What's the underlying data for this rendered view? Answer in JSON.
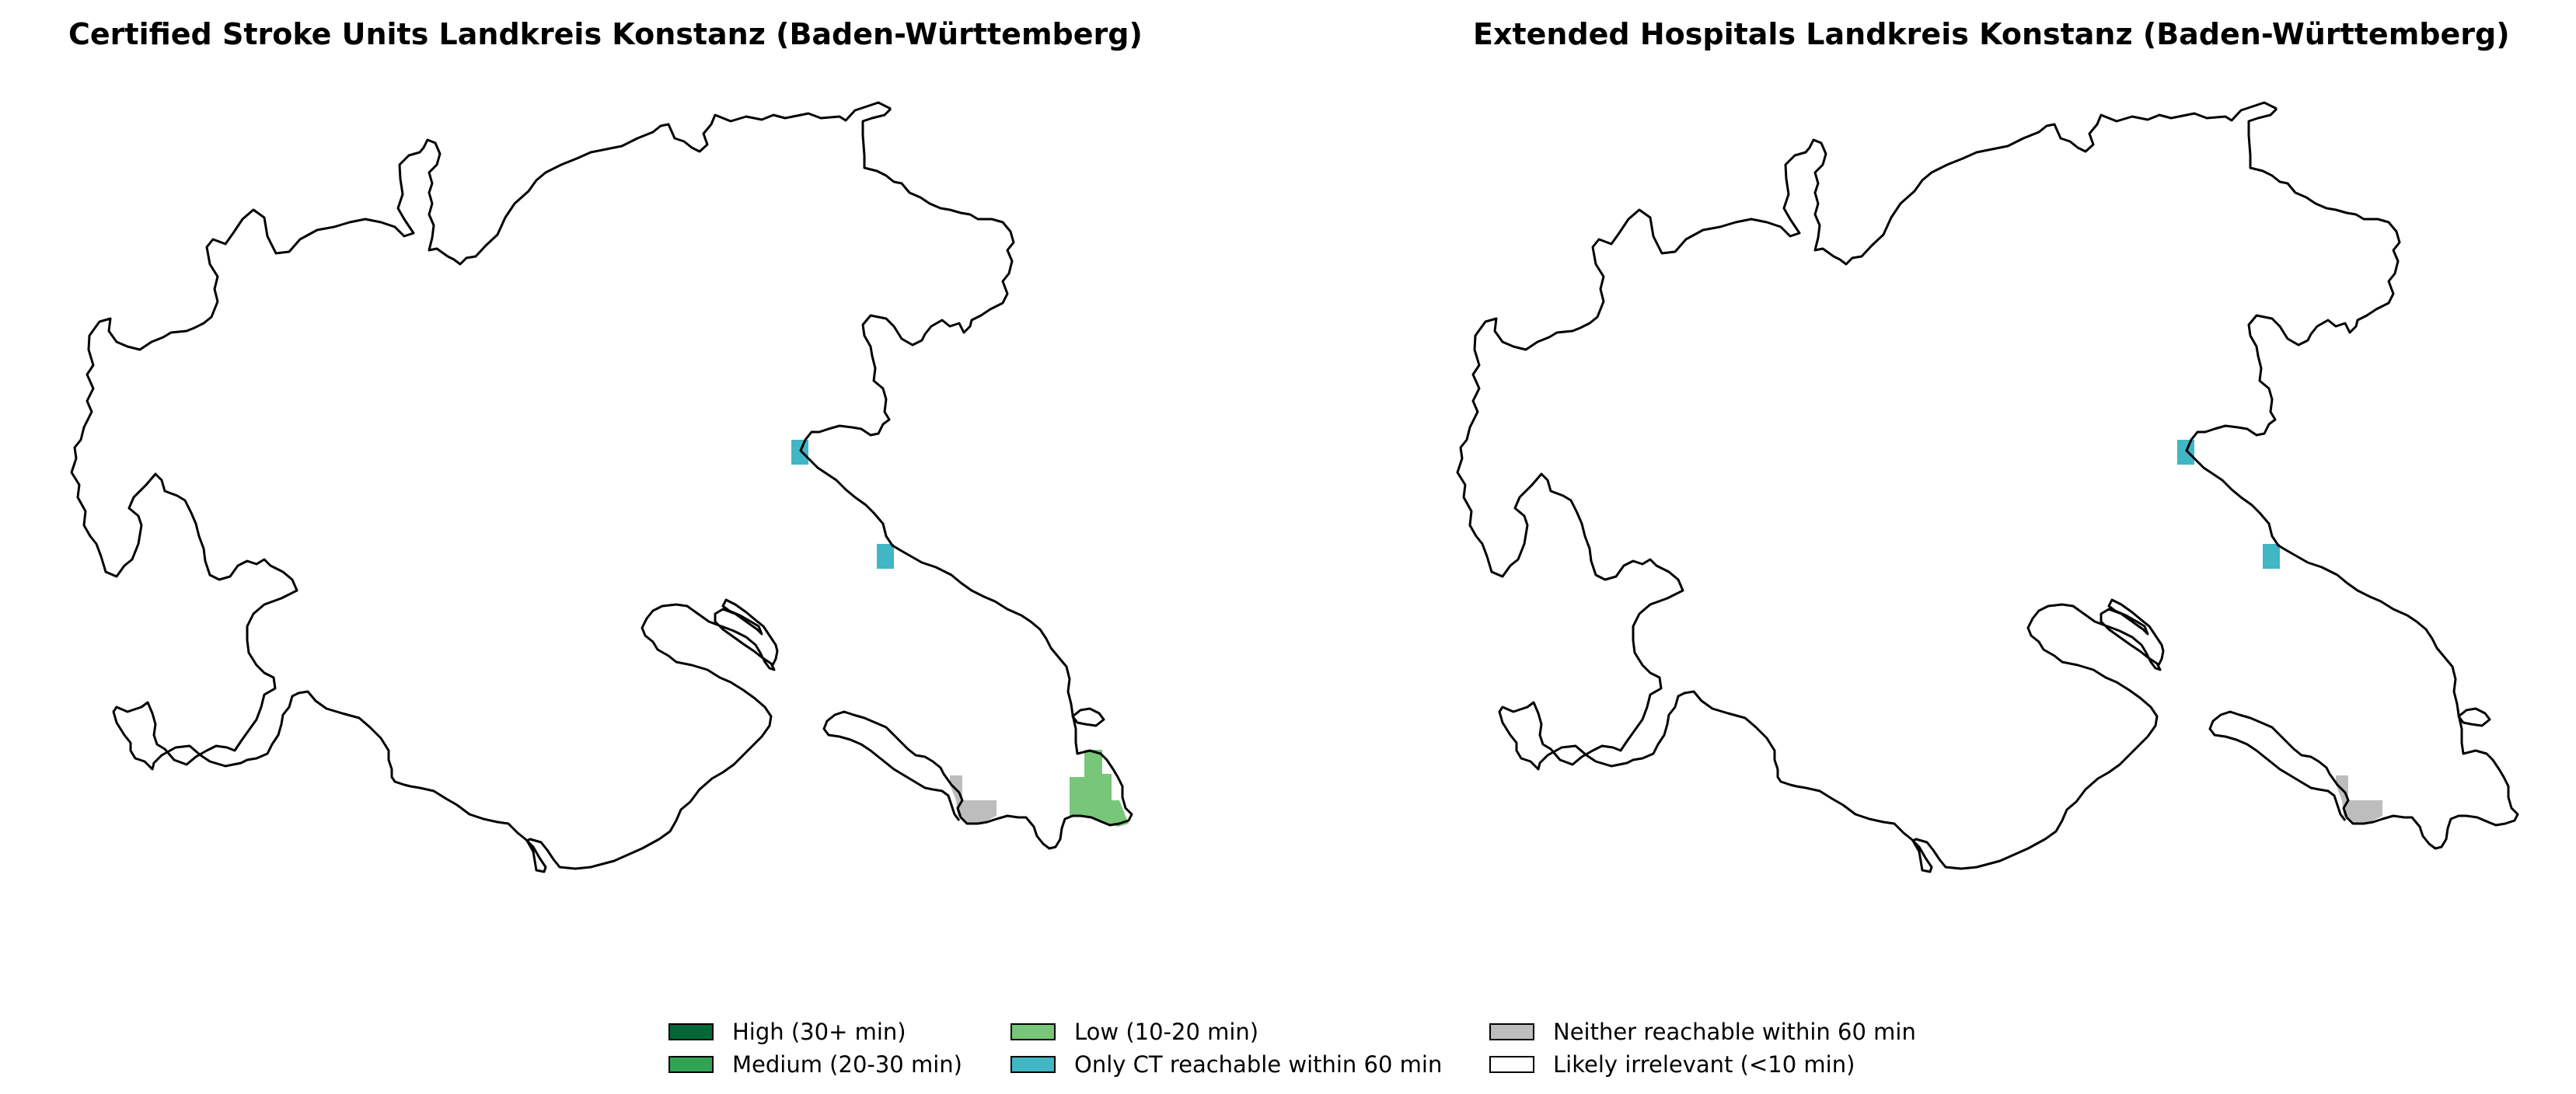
{
  "maps": [
    {
      "title": "Certified Stroke Units Landkreis Konstanz (Baden-Württemberg)",
      "scenario": "certified-stroke-units"
    },
    {
      "title": "Extended Hospitals Landkreis Konstanz (Baden-Württemberg)",
      "scenario": "extended-hospitals"
    }
  ],
  "legend": {
    "items": [
      {
        "label": "High (30+ min)",
        "color": "#006837"
      },
      {
        "label": "Medium (20-30 min)",
        "color": "#31a354"
      },
      {
        "label": "Low (10-20 min)",
        "color": "#78c679"
      },
      {
        "label": "Only CT reachable within 60 min",
        "color": "#41b6c4"
      },
      {
        "label": "Neither reachable within 60 min",
        "color": "#bdbdbd"
      },
      {
        "label": "Likely irrelevant (<10 min)",
        "color": "#ffffff"
      }
    ]
  }
}
